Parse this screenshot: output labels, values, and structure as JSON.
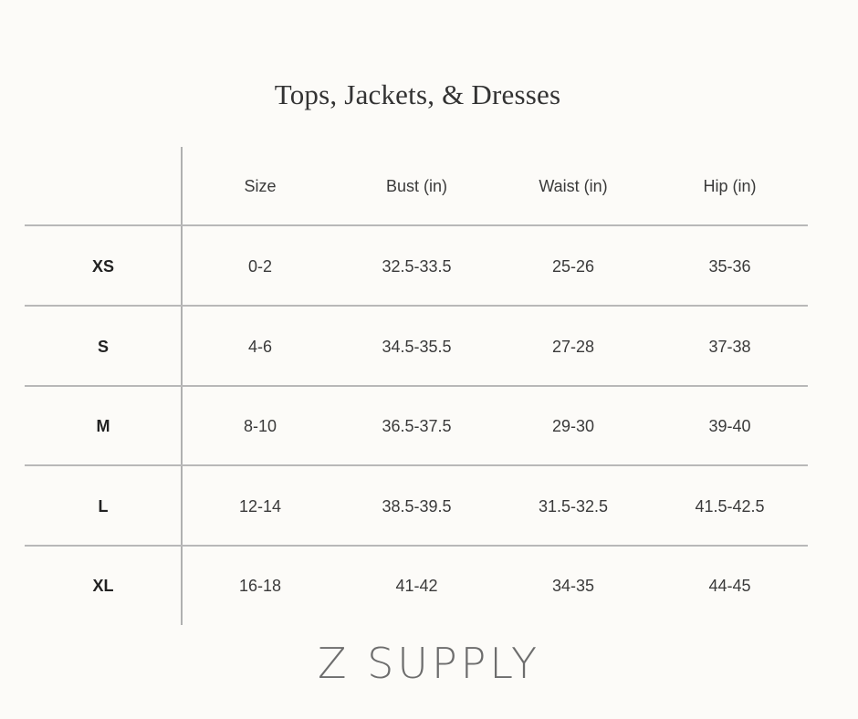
{
  "title": "Tops, Jackets, & Dresses",
  "table": {
    "headers": [
      "",
      "Size",
      "Bust (in)",
      "Waist (in)",
      "Hip (in)"
    ],
    "rows": [
      [
        "XS",
        "0-2",
        "32.5-33.5",
        "25-26",
        "35-36"
      ],
      [
        "S",
        "4-6",
        "34.5-35.5",
        "27-28",
        "37-38"
      ],
      [
        "M",
        "8-10",
        "36.5-37.5",
        "29-30",
        "39-40"
      ],
      [
        "L",
        "12-14",
        "38.5-39.5",
        "31.5-32.5",
        "41.5-42.5"
      ],
      [
        "XL",
        "16-18",
        "41-42",
        "34-35",
        "44-45"
      ]
    ]
  },
  "logo": "Z SUPPLY",
  "colors": {
    "background": "#fcfbf8",
    "grid": "#b8b8b8",
    "text": "#3a3a3a"
  }
}
